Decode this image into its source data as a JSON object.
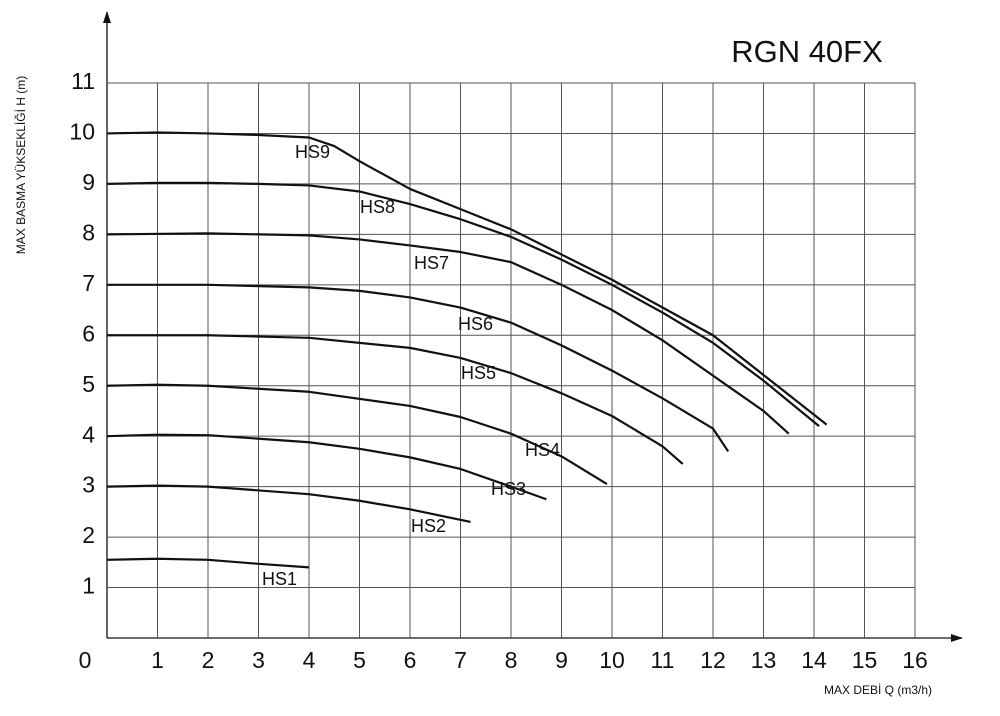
{
  "chart_data": {
    "type": "line",
    "title": "RGN 40FX",
    "x_label": "MAX DEBİ  Q (m3/h)",
    "y_label": "MAX BASMA YÜKSEKLİĞİ H (m)",
    "xlim": [
      0,
      16
    ],
    "ylim": [
      0,
      11
    ],
    "xticks": [
      0,
      1,
      2,
      3,
      4,
      5,
      6,
      7,
      8,
      9,
      10,
      11,
      12,
      13,
      14,
      15,
      16
    ],
    "yticks": [
      1,
      2,
      3,
      4,
      5,
      6,
      7,
      8,
      9,
      10,
      11
    ],
    "grid": true,
    "color": "#111111",
    "series": [
      {
        "name": "HS9",
        "x": [
          0,
          1,
          2,
          3,
          4,
          4.5,
          5,
          6,
          7,
          8,
          9,
          10,
          11,
          12,
          14.25
        ],
        "values": [
          10,
          10.02,
          10,
          9.97,
          9.92,
          9.75,
          9.45,
          8.9,
          8.5,
          8.1,
          7.6,
          7.1,
          6.55,
          6.0,
          4.23
        ]
      },
      {
        "name": "HS8",
        "x": [
          0,
          1,
          2,
          3,
          4,
          5,
          6,
          7,
          8,
          9,
          10,
          11,
          12,
          13,
          14.1
        ],
        "values": [
          9,
          9.02,
          9.02,
          9,
          8.97,
          8.85,
          8.6,
          8.3,
          7.95,
          7.5,
          7.0,
          6.45,
          5.85,
          5.1,
          4.2
        ]
      },
      {
        "name": "HS7",
        "x": [
          0,
          2,
          4,
          5,
          6,
          7,
          8,
          9,
          10,
          11,
          12,
          13,
          13.5
        ],
        "values": [
          8,
          8.02,
          7.98,
          7.9,
          7.78,
          7.65,
          7.45,
          7.0,
          6.5,
          5.9,
          5.2,
          4.5,
          4.05
        ]
      },
      {
        "name": "HS6",
        "x": [
          0,
          2,
          4,
          5,
          6,
          7,
          8,
          9,
          10,
          11,
          12,
          12.3
        ],
        "values": [
          7,
          7,
          6.95,
          6.88,
          6.75,
          6.55,
          6.25,
          5.8,
          5.3,
          4.75,
          4.15,
          3.7
        ]
      },
      {
        "name": "HS5",
        "x": [
          0,
          2,
          4,
          6,
          7,
          8,
          9,
          10,
          11,
          11.4
        ],
        "values": [
          6,
          6,
          5.95,
          5.75,
          5.55,
          5.25,
          4.85,
          4.4,
          3.8,
          3.45
        ]
      },
      {
        "name": "HS4",
        "x": [
          0,
          1,
          2,
          4,
          6,
          7,
          8,
          9,
          9.9
        ],
        "values": [
          5,
          5.02,
          5,
          4.88,
          4.6,
          4.38,
          4.05,
          3.6,
          3.05
        ]
      },
      {
        "name": "HS3",
        "x": [
          0,
          1,
          2,
          4,
          5,
          6,
          7,
          8,
          8.7
        ],
        "values": [
          4,
          4.03,
          4.02,
          3.88,
          3.75,
          3.58,
          3.35,
          3.0,
          2.75
        ]
      },
      {
        "name": "HS2",
        "x": [
          0,
          1,
          2,
          4,
          5,
          6,
          7.2
        ],
        "values": [
          3,
          3.02,
          3,
          2.85,
          2.72,
          2.55,
          2.3
        ]
      },
      {
        "name": "HS1",
        "x": [
          0,
          1,
          2,
          3,
          4
        ],
        "values": [
          1.55,
          1.57,
          1.55,
          1.47,
          1.4
        ]
      }
    ]
  }
}
